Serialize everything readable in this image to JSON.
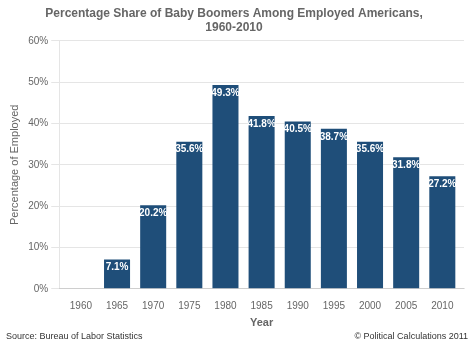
{
  "chart_data": {
    "type": "bar",
    "title": "Percentage Share of Baby Boomers Among Employed Americans,\n1960-2010",
    "xlabel": "Year",
    "ylabel": "Percentage of Employed",
    "x": [
      1960,
      1965,
      1970,
      1975,
      1980,
      1985,
      1990,
      1995,
      2000,
      2005,
      2010
    ],
    "values": [
      0.0,
      7.1,
      20.2,
      35.6,
      49.3,
      41.8,
      40.5,
      38.7,
      35.6,
      31.8,
      27.2
    ],
    "value_labels": [
      null,
      "7.1%",
      "20.2%",
      "35.6%",
      "49.3%",
      "41.8%",
      "40.5%",
      "38.7%",
      "35.6%",
      "31.8%",
      "27.2%"
    ],
    "data_labels": true,
    "color": "#1F4E79",
    "xlim": [
      1957,
      2013
    ],
    "xticks": [
      1960,
      1965,
      1970,
      1975,
      1980,
      1985,
      1990,
      1995,
      2000,
      2005,
      2010
    ],
    "ylim": [
      0,
      60
    ],
    "yticks": [
      {
        "value": 0,
        "label": "0%"
      },
      {
        "value": 10,
        "label": "10%"
      },
      {
        "value": 20,
        "label": "20%"
      },
      {
        "value": 30,
        "label": "30%"
      },
      {
        "value": 40,
        "label": "40%"
      },
      {
        "value": 50,
        "label": "50%"
      },
      {
        "value": 60,
        "label": "60%"
      }
    ],
    "grid": true,
    "annotations": [
      "Source: Bureau of Labor Statistics",
      "© Political Calculations 2011"
    ]
  }
}
